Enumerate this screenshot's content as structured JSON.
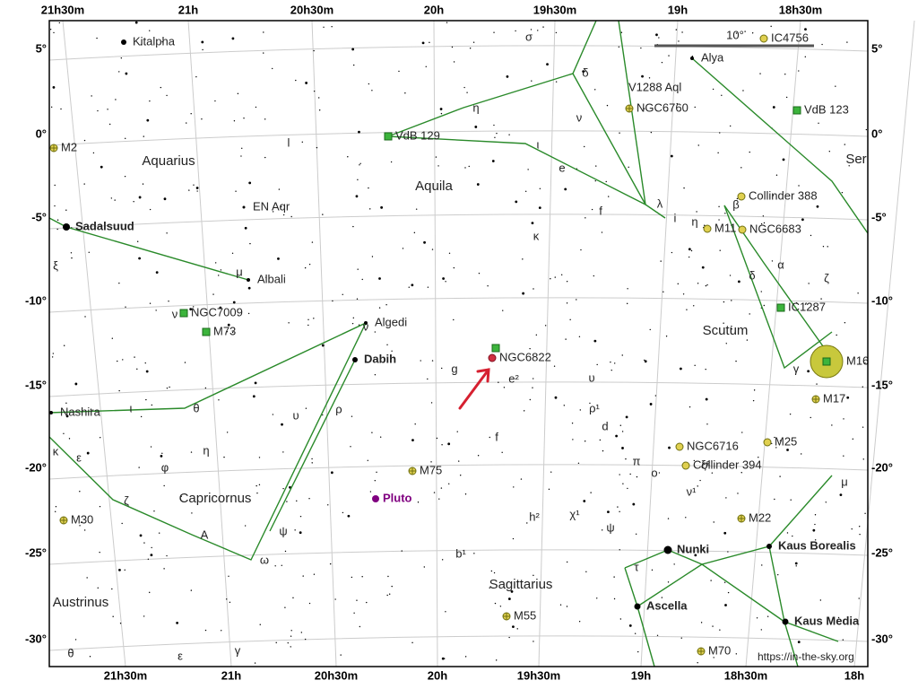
{
  "ra_labels_top": [
    "21h30m",
    "21h",
    "20h30m",
    "20h",
    "19h30m",
    "19h",
    "18h30m"
  ],
  "ra_labels_bottom": [
    "21h30m",
    "21h",
    "20h30m",
    "20h",
    "19h30m",
    "19h",
    "18h30m",
    "18h"
  ],
  "dec_labels_left": [
    "5°",
    "0°",
    "-5°",
    "-10°",
    "-15°",
    "-20°",
    "-25°",
    "-30°"
  ],
  "dec_labels_right": [
    "5°",
    "0°",
    "-5°",
    "-10°",
    "-15°",
    "-20°",
    "-25°",
    "-30°"
  ],
  "constellations": [
    "Aquarius",
    "Aquila",
    "Scutum",
    "Capricornus",
    "Sagittarius",
    "Austrinus",
    "Ser"
  ],
  "named_stars": [
    "Kitalpha",
    "Sadalsuud",
    "Albali",
    "Algedi",
    "Dabih",
    "Nashira",
    "Alya",
    "EN Aqr",
    "V1288 Aql",
    "Nunki",
    "Ascella",
    "Kaus Borealis",
    "Kaus Media"
  ],
  "star_letters": [
    "σ",
    "δ",
    "η",
    "ν",
    "ι",
    "e",
    "λ",
    "i",
    "η",
    "f",
    "κ",
    "β",
    "α",
    "δ",
    "ζ",
    "γ",
    "l",
    "ξ",
    "μ",
    "ν",
    "θ",
    "ι",
    "υ",
    "ρ",
    "ν",
    "g",
    "e²",
    "υ",
    "ρ¹",
    "d",
    "f",
    "π",
    "ο",
    "ξ²",
    "ν¹",
    "κ",
    "ε",
    "φ",
    "η",
    "ζ",
    "A",
    "ψ",
    "ω",
    "h²",
    "χ¹",
    "ψ",
    "b¹",
    "τ",
    "θ",
    "ε",
    "γ",
    "μ"
  ],
  "deep_sky_objects": [
    "M2",
    "VdB 129",
    "NGC6760",
    "VdB 123",
    "IC4756",
    "NGC6822",
    "Collinder 388",
    "M11",
    "NGC6683",
    "IC1287",
    "NGC7009",
    "M73",
    "M16",
    "M17",
    "NGC6716",
    "Collinder 394",
    "M25",
    "M75",
    "M30",
    "M22",
    "M55",
    "M70"
  ],
  "planet": "Pluto",
  "scale_label": "10°",
  "credit": "https://in-the-sky.org"
}
